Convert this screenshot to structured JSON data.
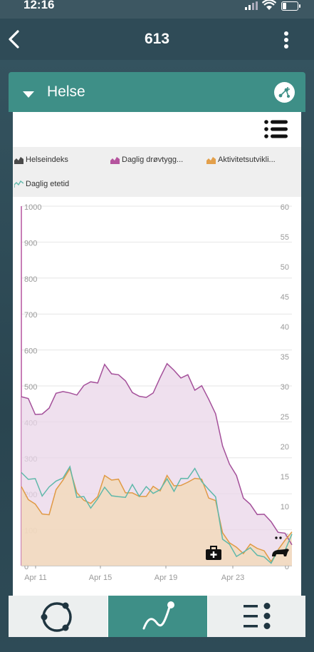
{
  "status": {
    "time": "12:16"
  },
  "nav": {
    "title": "613",
    "back": "back-chevron-icon",
    "menu": "more-vertical-icon"
  },
  "section": {
    "title": "Helse",
    "expanded": true
  },
  "legend": [
    {
      "label": "Helseindeks",
      "color": "#4a4a4a"
    },
    {
      "label": "Daglig drøvtygg...",
      "color": "#b5549e"
    },
    {
      "label": "Aktivitetsutvikli...",
      "color": "#e3a04b"
    },
    {
      "label": "Daglig etetid",
      "color": "#5fb8aa"
    }
  ],
  "chart_data": {
    "type": "line",
    "x_labels": [
      "Apr 11",
      "Apr 15",
      "Apr 19",
      "Apr 23"
    ],
    "y_left": {
      "ticks": [
        "1000",
        "900",
        "800",
        "700",
        "600",
        "500",
        "400",
        "300",
        "200",
        "100",
        "0"
      ],
      "range": [
        0,
        1000
      ]
    },
    "y_right": {
      "ticks": [
        "60",
        "55",
        "50",
        "45",
        "40",
        "35",
        "30",
        "25",
        "20",
        "15",
        "10",
        "5",
        "0"
      ],
      "range": [
        0,
        60
      ]
    },
    "grid": true,
    "series": [
      {
        "name": "Daglig drøvtygg...",
        "color": "#a4509a",
        "fill": "#e9d6e8",
        "axis": "left",
        "values": [
          470,
          460,
          430,
          410,
          450,
          470,
          490,
          480,
          470,
          510,
          500,
          520,
          550,
          540,
          530,
          510,
          490,
          460,
          480,
          470,
          530,
          560,
          540,
          530,
          520,
          500,
          490,
          470,
          420,
          330,
          290,
          240,
          200,
          160,
          150,
          140,
          120,
          100,
          80,
          70
        ]
      },
      {
        "name": "Aktivitetsutvikli...",
        "color": "#e09a45",
        "fill": "#f3d9b5",
        "axis": "left",
        "values": [
          210,
          190,
          170,
          140,
          150,
          200,
          250,
          260,
          210,
          180,
          170,
          200,
          240,
          250,
          230,
          210,
          200,
          190,
          200,
          210,
          220,
          240,
          230,
          220,
          230,
          250,
          230,
          200,
          170,
          100,
          60,
          50,
          40,
          50,
          60,
          30,
          20,
          40,
          70,
          100
        ]
      },
      {
        "name": "Daglig etetid",
        "color": "#5fb8aa",
        "fill": "none",
        "axis": "right",
        "values": [
          15,
          15,
          14,
          12,
          13,
          14,
          15,
          16,
          12,
          11,
          10,
          11,
          13,
          12,
          11,
          12,
          13,
          12,
          13,
          12,
          13,
          14,
          13,
          14,
          15,
          16,
          14,
          13,
          11,
          5,
          3,
          2,
          2,
          3,
          2,
          1,
          1,
          2,
          3,
          5
        ]
      }
    ],
    "annotations": [
      "medical-kit-icon",
      "cow-icon"
    ]
  },
  "tabs": [
    {
      "name": "overview-tab",
      "icon": "circle-nodes-icon",
      "active": false
    },
    {
      "name": "chart-tab",
      "icon": "trend-line-icon",
      "active": true
    },
    {
      "name": "list-tab",
      "icon": "list-bullets-icon",
      "active": false
    }
  ]
}
